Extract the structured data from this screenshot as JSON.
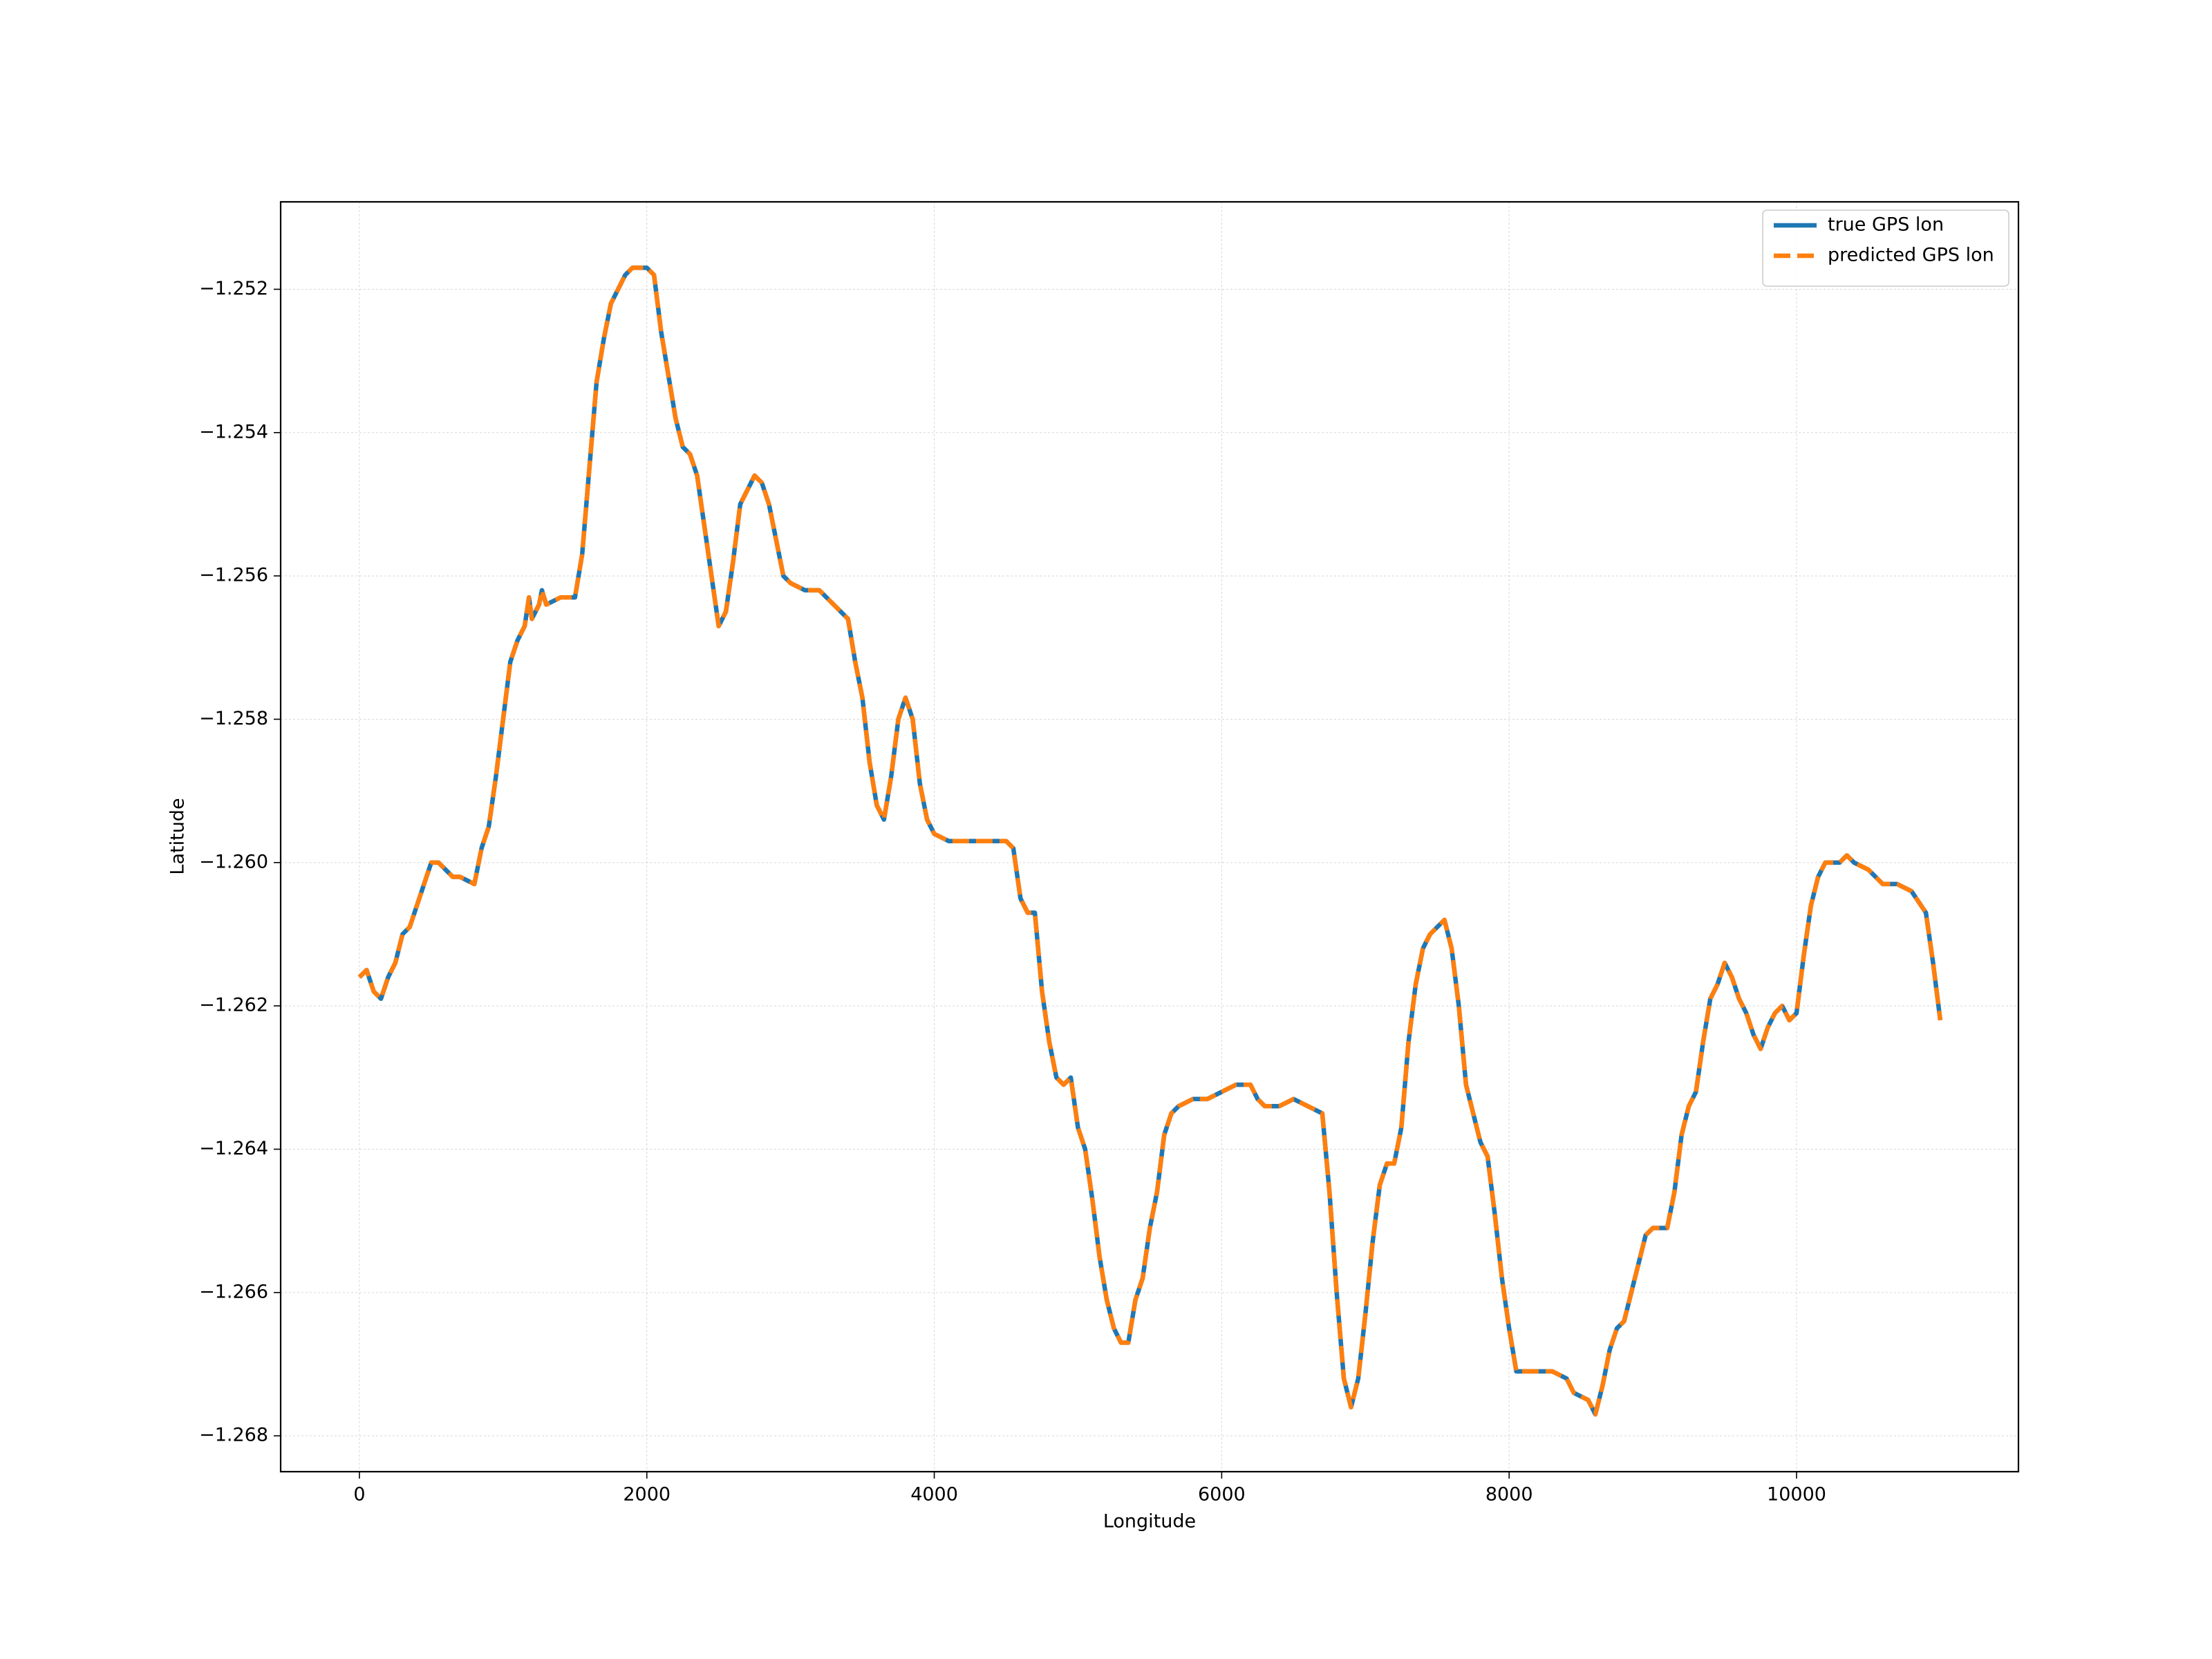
{
  "chart_data": {
    "type": "line",
    "xlabel": "Longitude",
    "ylabel": "Latitude",
    "x": [
      0,
      50,
      100,
      150,
      200,
      250,
      300,
      350,
      400,
      450,
      500,
      550,
      600,
      650,
      700,
      800,
      850,
      900,
      950,
      1000,
      1050,
      1100,
      1150,
      1180,
      1200,
      1250,
      1270,
      1300,
      1400,
      1500,
      1550,
      1600,
      1650,
      1700,
      1750,
      1800,
      1850,
      1900,
      2000,
      2050,
      2100,
      2150,
      2200,
      2250,
      2300,
      2350,
      2400,
      2450,
      2500,
      2550,
      2600,
      2650,
      2700,
      2750,
      2800,
      2850,
      2900,
      2950,
      3000,
      3100,
      3200,
      3300,
      3400,
      3450,
      3500,
      3550,
      3600,
      3650,
      3700,
      3750,
      3800,
      3850,
      3900,
      3950,
      4000,
      4100,
      4200,
      4300,
      4400,
      4500,
      4550,
      4600,
      4650,
      4700,
      4750,
      4800,
      4850,
      4900,
      4950,
      5000,
      5050,
      5100,
      5150,
      5200,
      5250,
      5300,
      5350,
      5400,
      5450,
      5500,
      5550,
      5600,
      5650,
      5700,
      5800,
      5900,
      6000,
      6100,
      6200,
      6250,
      6300,
      6400,
      6500,
      6600,
      6700,
      6750,
      6800,
      6850,
      6900,
      6950,
      7000,
      7050,
      7100,
      7150,
      7200,
      7250,
      7300,
      7350,
      7400,
      7450,
      7500,
      7550,
      7600,
      7650,
      7700,
      7750,
      7800,
      7850,
      7900,
      7950,
      8000,
      8050,
      8100,
      8200,
      8300,
      8400,
      8450,
      8550,
      8600,
      8650,
      8700,
      8750,
      8800,
      8850,
      8900,
      8950,
      9000,
      9100,
      9150,
      9200,
      9250,
      9300,
      9350,
      9400,
      9450,
      9500,
      9550,
      9600,
      9650,
      9700,
      9750,
      9800,
      9850,
      9900,
      9950,
      10000,
      10050,
      10100,
      10150,
      10200,
      10300,
      10350,
      10400,
      10500,
      10600,
      10700,
      10800,
      10900,
      10950,
      11000
    ],
    "series": [
      {
        "name": "true GPS lon",
        "color": "#1f77b4",
        "dash": false,
        "values": [
          -1.2616,
          -1.2615,
          -1.2618,
          -1.2619,
          -1.2616,
          -1.2614,
          -1.261,
          -1.2609,
          -1.2606,
          -1.2603,
          -1.26,
          -1.26,
          -1.2601,
          -1.2602,
          -1.2602,
          -1.2603,
          -1.2598,
          -1.2595,
          -1.2588,
          -1.258,
          -1.2572,
          -1.2569,
          -1.2567,
          -1.2563,
          -1.2566,
          -1.2564,
          -1.2562,
          -1.2564,
          -1.2563,
          -1.2563,
          -1.2557,
          -1.2545,
          -1.2533,
          -1.2527,
          -1.2522,
          -1.252,
          -1.2518,
          -1.2517,
          -1.2517,
          -1.2518,
          -1.2526,
          -1.2532,
          -1.2538,
          -1.2542,
          -1.2543,
          -1.2546,
          -1.2553,
          -1.256,
          -1.2567,
          -1.2565,
          -1.2558,
          -1.255,
          -1.2548,
          -1.2546,
          -1.2547,
          -1.255,
          -1.2555,
          -1.256,
          -1.2561,
          -1.2562,
          -1.2562,
          -1.2564,
          -1.2566,
          -1.2572,
          -1.2577,
          -1.2586,
          -1.2592,
          -1.2594,
          -1.2588,
          -1.258,
          -1.2577,
          -1.258,
          -1.2589,
          -1.2594,
          -1.2596,
          -1.2597,
          -1.2597,
          -1.2597,
          -1.2597,
          -1.2597,
          -1.2598,
          -1.2605,
          -1.2607,
          -1.2607,
          -1.2618,
          -1.2625,
          -1.263,
          -1.2631,
          -1.263,
          -1.2637,
          -1.264,
          -1.2647,
          -1.2655,
          -1.2661,
          -1.2665,
          -1.2667,
          -1.2667,
          -1.2661,
          -1.2658,
          -1.2651,
          -1.2646,
          -1.2638,
          -1.2635,
          -1.2634,
          -1.2633,
          -1.2633,
          -1.2632,
          -1.2631,
          -1.2631,
          -1.2633,
          -1.2634,
          -1.2634,
          -1.2633,
          -1.2634,
          -1.2635,
          -1.2646,
          -1.266,
          -1.2672,
          -1.2676,
          -1.2672,
          -1.2663,
          -1.2653,
          -1.2645,
          -1.2642,
          -1.2642,
          -1.2637,
          -1.2625,
          -1.2617,
          -1.2612,
          -1.261,
          -1.2609,
          -1.2608,
          -1.2612,
          -1.262,
          -1.2631,
          -1.2635,
          -1.2639,
          -1.2641,
          -1.2649,
          -1.2658,
          -1.2665,
          -1.2671,
          -1.2671,
          -1.2671,
          -1.2671,
          -1.2672,
          -1.2674,
          -1.2675,
          -1.2677,
          -1.2673,
          -1.2668,
          -1.2665,
          -1.2664,
          -1.266,
          -1.2656,
          -1.2652,
          -1.2651,
          -1.2651,
          -1.2646,
          -1.2638,
          -1.2634,
          -1.2632,
          -1.2625,
          -1.2619,
          -1.2617,
          -1.2614,
          -1.2616,
          -1.2619,
          -1.2621,
          -1.2624,
          -1.2626,
          -1.2623,
          -1.2621,
          -1.262,
          -1.2622,
          -1.2621,
          -1.2613,
          -1.2606,
          -1.2602,
          -1.26,
          -1.26,
          -1.2599,
          -1.26,
          -1.2601,
          -1.2603,
          -1.2603,
          -1.2604,
          -1.2607,
          -1.2614,
          -1.2622
        ]
      },
      {
        "name": "predicted GPS lon",
        "color": "#ff7f0e",
        "dash": true,
        "values": [
          -1.2616,
          -1.2615,
          -1.2618,
          -1.2619,
          -1.2616,
          -1.2614,
          -1.261,
          -1.2609,
          -1.2606,
          -1.2603,
          -1.26,
          -1.26,
          -1.2601,
          -1.2602,
          -1.2602,
          -1.2603,
          -1.2598,
          -1.2595,
          -1.2588,
          -1.258,
          -1.2572,
          -1.2569,
          -1.2567,
          -1.2563,
          -1.2566,
          -1.2564,
          -1.2562,
          -1.2564,
          -1.2563,
          -1.2563,
          -1.2557,
          -1.2545,
          -1.2533,
          -1.2527,
          -1.2522,
          -1.252,
          -1.2518,
          -1.2517,
          -1.2517,
          -1.2518,
          -1.2526,
          -1.2532,
          -1.2538,
          -1.2542,
          -1.2543,
          -1.2546,
          -1.2553,
          -1.256,
          -1.2567,
          -1.2565,
          -1.2558,
          -1.255,
          -1.2548,
          -1.2546,
          -1.2547,
          -1.255,
          -1.2555,
          -1.256,
          -1.2561,
          -1.2562,
          -1.2562,
          -1.2564,
          -1.2566,
          -1.2572,
          -1.2577,
          -1.2586,
          -1.2592,
          -1.2594,
          -1.2588,
          -1.258,
          -1.2577,
          -1.258,
          -1.2589,
          -1.2594,
          -1.2596,
          -1.2597,
          -1.2597,
          -1.2597,
          -1.2597,
          -1.2597,
          -1.2598,
          -1.2605,
          -1.2607,
          -1.2607,
          -1.2618,
          -1.2625,
          -1.263,
          -1.2631,
          -1.263,
          -1.2637,
          -1.264,
          -1.2647,
          -1.2655,
          -1.2661,
          -1.2665,
          -1.2667,
          -1.2667,
          -1.2661,
          -1.2658,
          -1.2651,
          -1.2646,
          -1.2638,
          -1.2635,
          -1.2634,
          -1.2633,
          -1.2633,
          -1.2632,
          -1.2631,
          -1.2631,
          -1.2633,
          -1.2634,
          -1.2634,
          -1.2633,
          -1.2634,
          -1.2635,
          -1.2646,
          -1.266,
          -1.2672,
          -1.2676,
          -1.2672,
          -1.2663,
          -1.2653,
          -1.2645,
          -1.2642,
          -1.2642,
          -1.2637,
          -1.2625,
          -1.2617,
          -1.2612,
          -1.261,
          -1.2609,
          -1.2608,
          -1.2612,
          -1.262,
          -1.2631,
          -1.2635,
          -1.2639,
          -1.2641,
          -1.2649,
          -1.2658,
          -1.2665,
          -1.2671,
          -1.2671,
          -1.2671,
          -1.2671,
          -1.2672,
          -1.2674,
          -1.2675,
          -1.2677,
          -1.2673,
          -1.2668,
          -1.2665,
          -1.2664,
          -1.266,
          -1.2656,
          -1.2652,
          -1.2651,
          -1.2651,
          -1.2646,
          -1.2638,
          -1.2634,
          -1.2632,
          -1.2625,
          -1.2619,
          -1.2617,
          -1.2614,
          -1.2616,
          -1.2619,
          -1.2621,
          -1.2624,
          -1.2626,
          -1.2623,
          -1.2621,
          -1.262,
          -1.2622,
          -1.2621,
          -1.2613,
          -1.2606,
          -1.2602,
          -1.26,
          -1.26,
          -1.2599,
          -1.26,
          -1.2601,
          -1.2603,
          -1.2603,
          -1.2604,
          -1.2607,
          -1.2614,
          -1.2622
        ]
      }
    ],
    "xlim": [
      -548,
      11544
    ],
    "ylim": [
      -1.2685,
      -1.25078
    ],
    "xticks": [
      0,
      2000,
      4000,
      6000,
      8000,
      10000
    ],
    "yticks": [
      {
        "value": -1.268,
        "label": "−1.268"
      },
      {
        "value": -1.266,
        "label": "−1.266"
      },
      {
        "value": -1.264,
        "label": "−1.264"
      },
      {
        "value": -1.262,
        "label": "−1.262"
      },
      {
        "value": -1.26,
        "label": "−1.260"
      },
      {
        "value": -1.258,
        "label": "−1.258"
      },
      {
        "value": -1.256,
        "label": "−1.256"
      },
      {
        "value": -1.254,
        "label": "−1.254"
      },
      {
        "value": -1.252,
        "label": "−1.252"
      }
    ],
    "grid": true,
    "legend": "upper right"
  }
}
